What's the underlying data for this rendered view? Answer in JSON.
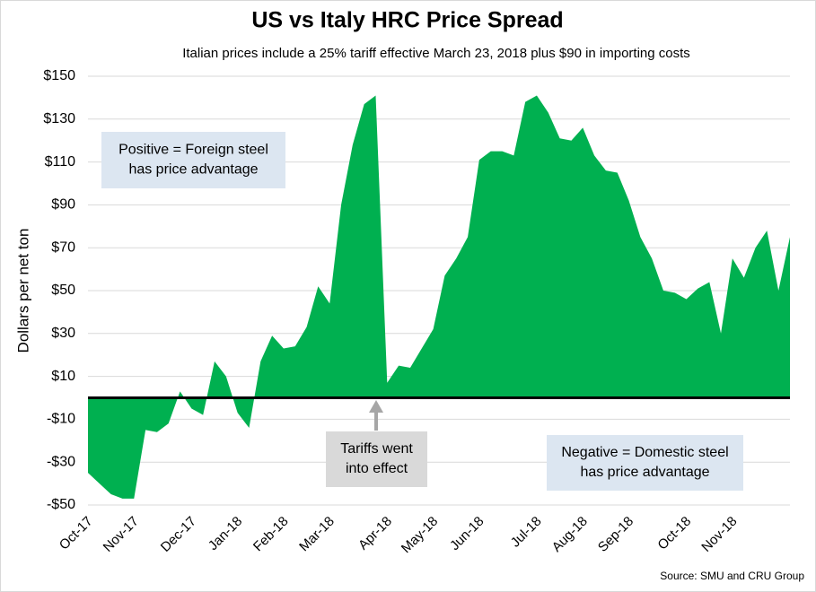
{
  "chart_data": {
    "type": "area",
    "title": "US vs Italy HRC Price Spread",
    "subtitle": "Italian prices include a 25% tariff effective March 23, 2018 plus $90 in importing costs",
    "y_label": "Dollars per net ton",
    "source": "Source: SMU and CRU Group",
    "annotations": [
      {
        "lines": [
          "Positive = Foreign steel",
          "has price advantage"
        ],
        "color": "#dce6f1"
      },
      {
        "lines": [
          "Tariffs went",
          "into effect"
        ],
        "color": "#d9d9d9"
      },
      {
        "lines": [
          "Negative = Domestic steel",
          "has price advantage"
        ],
        "color": "#dce6f1"
      }
    ],
    "categories": [
      "Oct-17",
      null,
      null,
      null,
      "Nov-17",
      null,
      null,
      null,
      null,
      "Dec-17",
      null,
      null,
      null,
      "Jan-18",
      null,
      null,
      null,
      "Feb-18",
      null,
      null,
      null,
      "Mar-18",
      null,
      null,
      null,
      null,
      "Apr-18",
      null,
      null,
      null,
      "May-18",
      null,
      null,
      null,
      "Jun-18",
      null,
      null,
      null,
      null,
      "Jul-18",
      null,
      null,
      null,
      "Aug-18",
      null,
      null,
      null,
      "Sep-18",
      null,
      null,
      null,
      null,
      "Oct-18",
      null,
      null,
      null,
      "Nov-18",
      null,
      null,
      null,
      null,
      null
    ],
    "values": [
      -35,
      -40,
      -45,
      -47,
      -47,
      -15,
      -16,
      -12,
      3,
      -5,
      -8,
      17,
      10,
      -7,
      -14,
      17,
      29,
      23,
      24,
      33,
      52,
      44,
      90,
      118,
      137,
      141,
      7,
      15,
      14,
      23,
      32,
      57,
      65,
      75,
      111,
      115,
      115,
      113,
      138,
      141,
      133,
      121,
      120,
      126,
      113,
      106,
      105,
      92,
      75,
      65,
      50,
      49,
      46,
      51,
      54,
      30,
      65,
      56,
      70,
      78,
      50,
      75
    ],
    "color": "#00b050",
    "ylim": [
      -50,
      150
    ],
    "yticks": [
      {
        "value": -50,
        "label": "-$50"
      },
      {
        "value": -30,
        "label": "-$30"
      },
      {
        "value": -10,
        "label": "-$10"
      },
      {
        "value": 10,
        "label": "$10"
      },
      {
        "value": 30,
        "label": "$30"
      },
      {
        "value": 50,
        "label": "$50"
      },
      {
        "value": 70,
        "label": "$70"
      },
      {
        "value": 90,
        "label": "$90"
      },
      {
        "value": 110,
        "label": "$110"
      },
      {
        "value": 130,
        "label": "$130"
      },
      {
        "value": 150,
        "label": "$150"
      }
    ],
    "grid": true
  }
}
